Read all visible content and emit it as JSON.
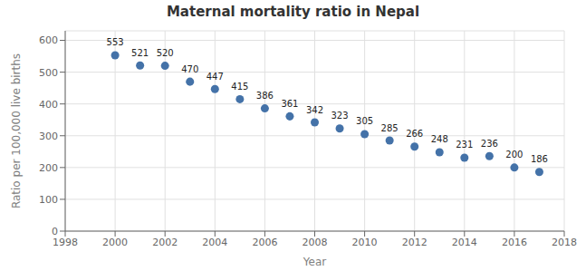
{
  "chart_data": {
    "type": "scatter",
    "title": "Maternal mortality ratio in Nepal",
    "xlabel": "Year",
    "ylabel": "Ratio per 100,000 live births",
    "x": [
      2000,
      2001,
      2002,
      2003,
      2004,
      2005,
      2006,
      2007,
      2008,
      2009,
      2010,
      2011,
      2012,
      2013,
      2014,
      2015,
      2016,
      2017
    ],
    "values": [
      553,
      521,
      520,
      470,
      447,
      415,
      386,
      361,
      342,
      323,
      305,
      285,
      266,
      248,
      231,
      236,
      200,
      186
    ],
    "color": "#4472a8",
    "xlim": [
      1998,
      2018
    ],
    "ylim": [
      0,
      630
    ],
    "xticks": [
      1998,
      2000,
      2002,
      2004,
      2006,
      2008,
      2010,
      2012,
      2014,
      2016,
      2018
    ],
    "yticks": [
      0,
      100,
      200,
      300,
      400,
      500,
      600
    ],
    "grid": true,
    "data_labels": true
  }
}
